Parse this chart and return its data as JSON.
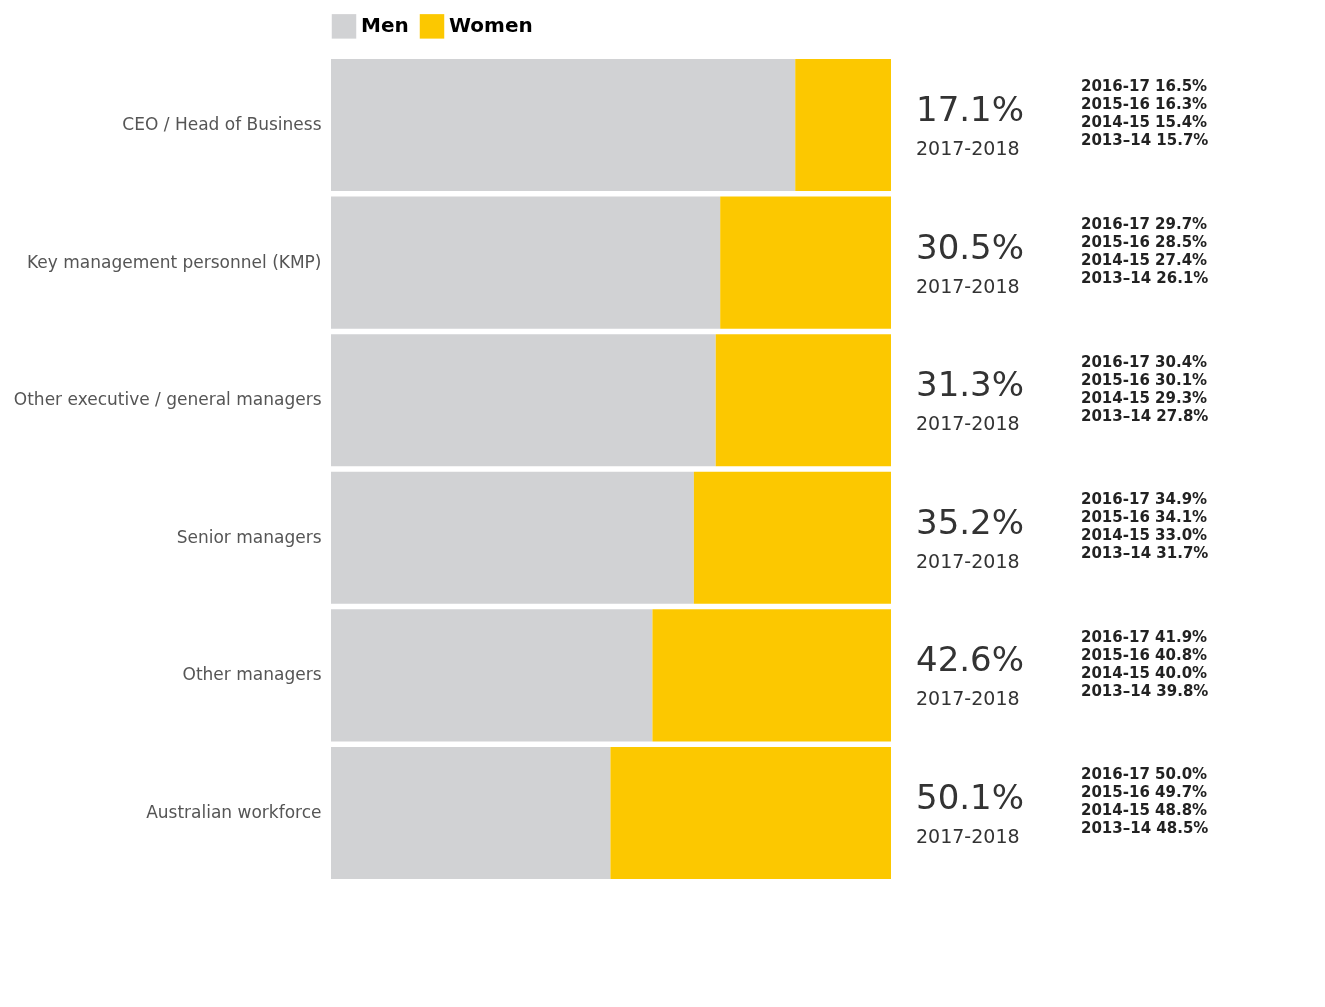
{
  "chart_data": {
    "type": "bar",
    "orientation": "horizontal",
    "stacked": true,
    "legend": "top left",
    "tick_labels": "y",
    "xlim": [
      0,
      100
    ],
    "categories": [
      "CEO / Head of Business",
      "Key management personnel (KMP)",
      "Other executive / general managers",
      "Senior managers",
      "Other managers",
      "Australian workforce"
    ],
    "series": [
      {
        "name": "Men",
        "color": "#d1d2d4",
        "values": [
          82.9,
          69.5,
          68.7,
          64.8,
          57.4,
          49.9
        ]
      },
      {
        "name": "Women",
        "color": "#fcc800",
        "values": [
          17.1,
          30.5,
          31.3,
          35.2,
          42.6,
          50.1
        ],
        "value_labels": [
          "17.1%",
          "30.5%",
          "31.3%",
          "35.2%",
          "42.6%",
          "50.1%"
        ]
      }
    ],
    "annotations": [
      "2017-2018",
      "2016-17  16.5%",
      "2015-16  16.3%",
      "2014-15  15.4%",
      "2013–14  15.7%",
      "2017-2018",
      "2016-17  29.7%",
      "2015-16  28.5%",
      "2014-15  27.4%",
      "2013–14  26.1%",
      "2017-2018",
      "2016-17  30.4%",
      "2015-16  30.1%",
      "2014-15  29.3%",
      "2013–14  27.8%",
      "2017-2018",
      "2016-17  34.9%",
      "2015-16  34.1%",
      "2014-15  33.0%",
      "2013–14  31.7%",
      "2017-2018",
      "2016-17  41.9%",
      "2015-16  40.8%",
      "2014-15  40.0%",
      "2013–14  39.8%",
      "2017-2018",
      "2016-17  50.0%",
      "2015-16  49.7%",
      "2014-15  48.8%",
      "2013–14  48.5%"
    ]
  }
}
